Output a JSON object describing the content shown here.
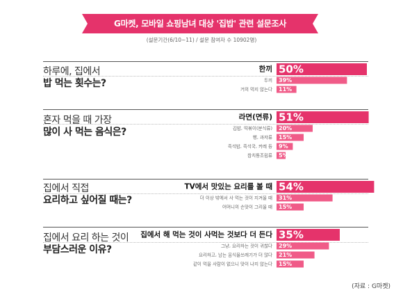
{
  "header": {
    "title": "G마켓, 모바일 쇼핑남녀 대상 '집밥' 관련 설문조사",
    "subtitle": "(설문기간(6/10~11) / 설문 참여자 수 10902명)",
    "banner_color": "#e5336b"
  },
  "source": "(자료 : G마켓)",
  "colors": {
    "top": "#e5336b",
    "other": "#f05b88"
  },
  "questions": [
    {
      "line1": "하루에, 집에서",
      "line2": "밥 먹는 횟수는?"
    },
    {
      "line1": "혼자 먹을 때 가장",
      "line2": "많이 사 먹는 음식은?"
    },
    {
      "line1": "집에서 직접",
      "line2": "요리하고 싶어질 때는?"
    },
    {
      "line1": "집에서 요리 하는 것이",
      "line2": "부담스러운 이유?"
    }
  ],
  "chart_data": [
    {
      "type": "bar",
      "categories": [
        "한끼",
        "두끼",
        "거의 먹지 않는다"
      ],
      "values": [
        50,
        39,
        11
      ],
      "labels": [
        "50%",
        "39%",
        "11%"
      ]
    },
    {
      "type": "bar",
      "categories": [
        "라면(면류)",
        "김밥, 떡볶이(분식류)",
        "빵, 과자류",
        "즉석밥, 즉석국, 카레 등",
        "참치통조림류"
      ],
      "values": [
        51,
        20,
        15,
        9,
        5
      ],
      "labels": [
        "51%",
        "20%",
        "15%",
        "9%",
        "5%"
      ]
    },
    {
      "type": "bar",
      "categories": [
        "TV에서 맛있는 요리를 볼 때",
        "더 이상 밖에서 사 먹는 것이 지겨울 때",
        "어머니의 손맛이 그리울 때"
      ],
      "values": [
        54,
        31,
        15
      ],
      "labels": [
        "54%",
        "31%",
        "15%"
      ]
    },
    {
      "type": "bar",
      "categories": [
        "집에서 해 먹는 것이 사먹는 것보다 더 든다",
        "그냥, 요리하는 것이 귀찮다",
        "요리하고, 남는 음식물쓰레기가 더 많다",
        "같이 먹을 사람이 없으니 맛이 나지 않는다"
      ],
      "values": [
        35,
        29,
        21,
        15
      ],
      "labels": [
        "35%",
        "29%",
        "21%",
        "15%"
      ]
    }
  ]
}
